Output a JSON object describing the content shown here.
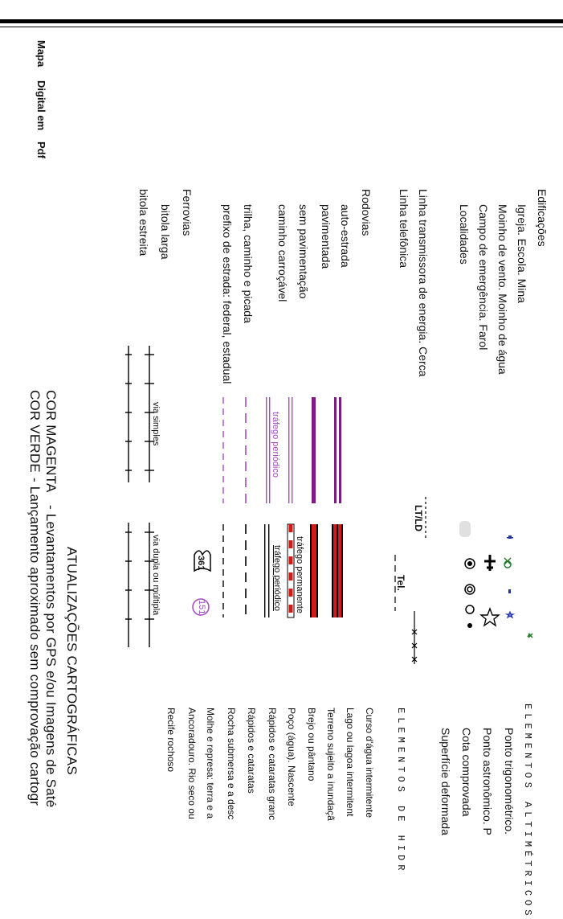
{
  "side_title": {
    "part1": "Mapa",
    "part2": "Digital em",
    "part3": "Pdf"
  },
  "construcoes": {
    "edificacoes": "Edificações",
    "igreja": "Igreja. Escola. Mina",
    "moinho": "Moinho de vento. Moinho de água",
    "campo": "Campo de emergência. Farol",
    "localidades": "Localidades"
  },
  "linhas": {
    "transmissao": "Linha transmissora de energia. Cerca",
    "telefonica": "Linha telefônica",
    "lt_label": "LT/LD",
    "tel_label": "Tel."
  },
  "rodovias": {
    "title": "Rodovias",
    "items": [
      "auto-estrada",
      "pavimentada",
      "sem pavimentação",
      "caminho carroçável",
      "trilha, caminho e picada",
      "prefixo de estrada: federal, estadual"
    ],
    "trafego_periodico": "tráfego periódico",
    "trafego_permanente": "tráfego permanente",
    "federal_number": "361",
    "estadual_number": "151"
  },
  "ferrovias": {
    "title": "Ferrovias",
    "items": [
      "bitola larga",
      "bitola estreita"
    ],
    "via_simples": "via simples",
    "via_dupla": "via dupla ou múltipla"
  },
  "altimetricos": {
    "title": "ELEMENTOS ALTIMÉTRICOS",
    "items": [
      "Ponto trigonométrico.",
      "Ponto astronômico. P",
      "Cota comprovada",
      "Superfície deformada"
    ]
  },
  "hidrografia": {
    "title": "ELEMENTOS DE HIDR",
    "items": [
      "Curso d'água intermitente",
      "Lago ou lagoa intermitent",
      "Terreno sujeito a inundaçã",
      "Brejo ou pântano",
      "Poço (água). Nascente",
      "Rápidos e cataratas granc",
      "Rápidos e cataratas",
      "Rocha submersa e a desc",
      "Molhe e represa: terra e a",
      "Ancoradouro. Rio seco ou",
      "Recife rochoso"
    ]
  },
  "atualizacoes": {
    "title": "ATUALIZAÇÕES CARTOGRÁFICAS",
    "magenta_label": "COR MAGENTA",
    "magenta_text": "- Levantamentos por GPS e/ou Imagens de Saté",
    "verde_label": "COR VERDE",
    "verde_text": "- Lançamento aproximado sem comprovação cartogr"
  },
  "colors": {
    "magenta": "#7d1a86",
    "magenta_light": "#a24cc0",
    "red": "#d11a1a",
    "green": "#1f7a2a",
    "blue": "#2233aa"
  }
}
